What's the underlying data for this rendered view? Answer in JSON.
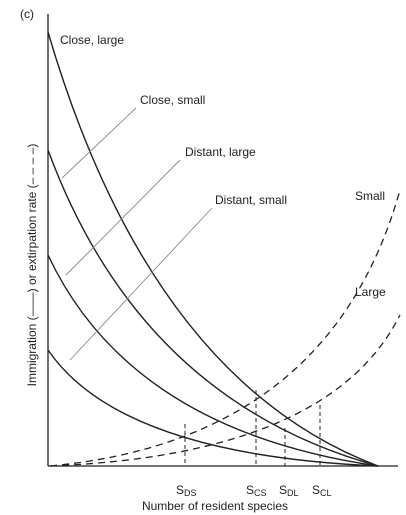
{
  "panel_label": "(c)",
  "curve_labels": [
    "Close, large",
    "Close, small",
    "Distant, large",
    "Distant, small",
    "Small",
    "Large"
  ],
  "equilibria": [
    {
      "letter": "S",
      "sub": "DS"
    },
    {
      "letter": "S",
      "sub": "CS"
    },
    {
      "letter": "S",
      "sub": "DL"
    },
    {
      "letter": "S",
      "sub": "CL"
    }
  ],
  "y_axis_label": "Immigration (——) or extirpation rate (– – – –)",
  "x_axis_label": "Number of resident species"
}
